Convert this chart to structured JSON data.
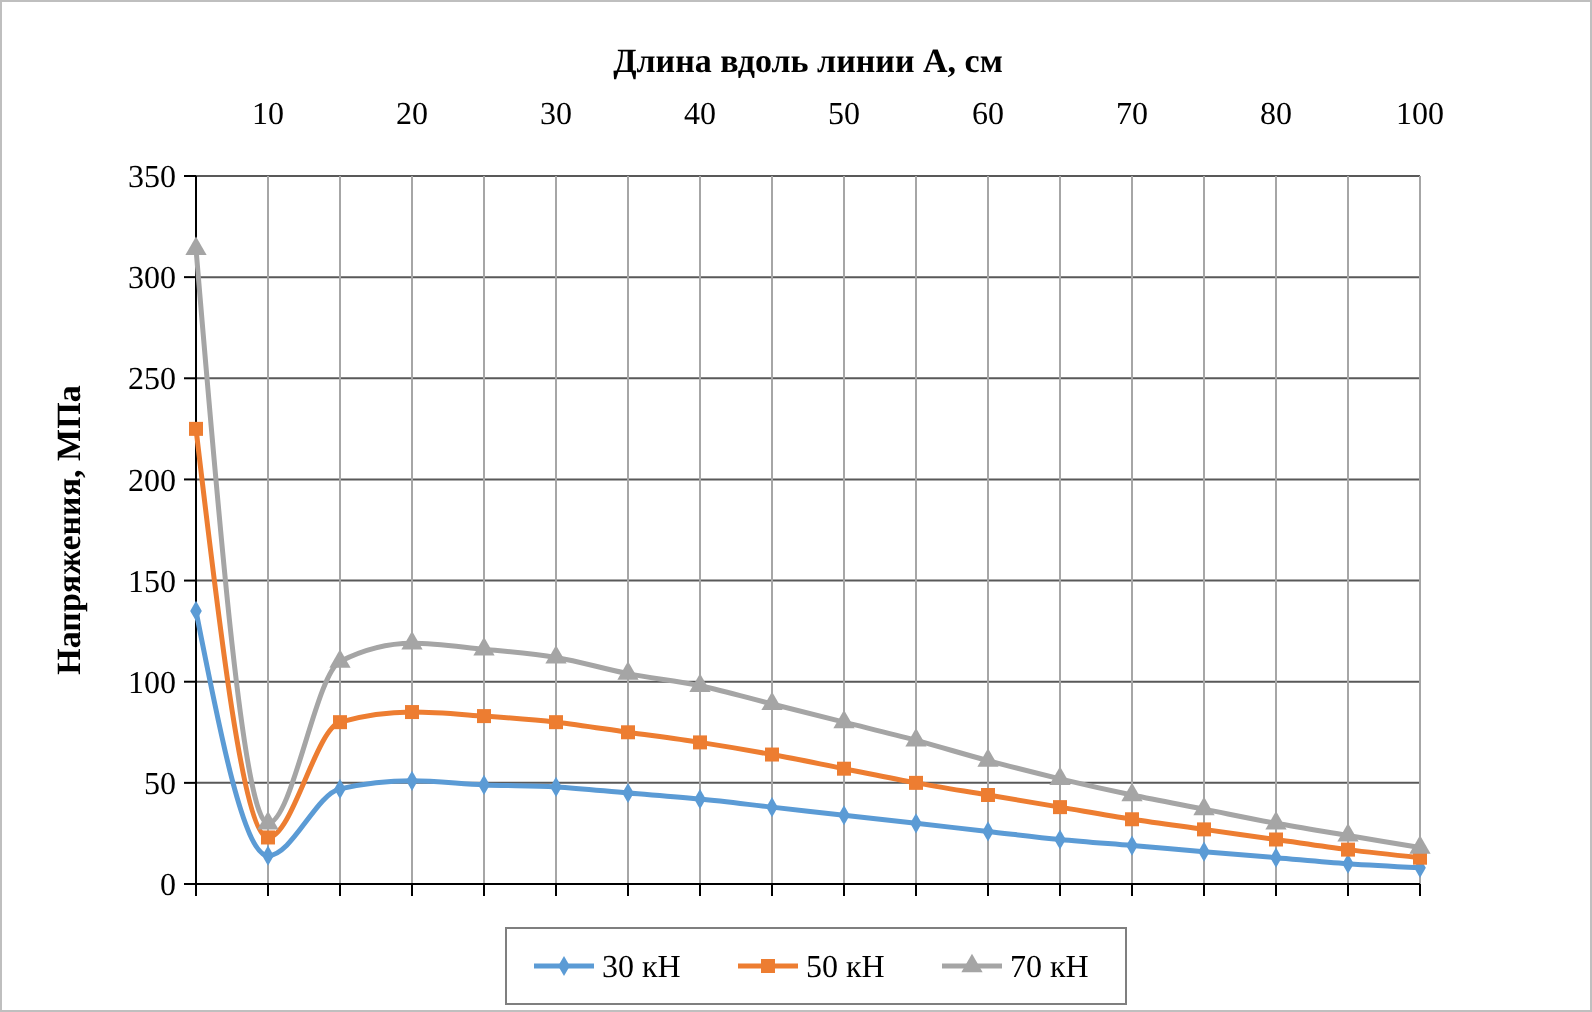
{
  "chart_data": {
    "type": "line",
    "xlabel": "Длина вдоль линии А, см",
    "ylabel": "Напряжения, МПа",
    "categories": [
      null,
      "10",
      null,
      "20",
      null,
      "30",
      null,
      "40",
      null,
      "50",
      null,
      "60",
      null,
      "70",
      null,
      "80",
      null,
      "100"
    ],
    "ylim": [
      0,
      350
    ],
    "yticks": [
      0,
      50,
      100,
      150,
      200,
      250,
      300,
      350
    ],
    "grid": true,
    "legend": "bottom",
    "series": [
      {
        "name": "30 кН",
        "color": "#5b9bd5",
        "marker": "diamond",
        "values": [
          135,
          14,
          47,
          51,
          49,
          48,
          45,
          42,
          38,
          34,
          30,
          26,
          22,
          19,
          16,
          13,
          10,
          8
        ]
      },
      {
        "name": "50 кН",
        "color": "#ed7d31",
        "marker": "square",
        "values": [
          225,
          23,
          80,
          85,
          83,
          80,
          75,
          70,
          64,
          57,
          50,
          44,
          38,
          32,
          27,
          22,
          17,
          13
        ]
      },
      {
        "name": "70 кН",
        "color": "#a5a5a5",
        "marker": "triangle",
        "values": [
          314,
          30,
          110,
          119,
          116,
          112,
          104,
          98,
          89,
          80,
          71,
          61,
          52,
          44,
          37,
          30,
          24,
          18
        ]
      }
    ]
  }
}
